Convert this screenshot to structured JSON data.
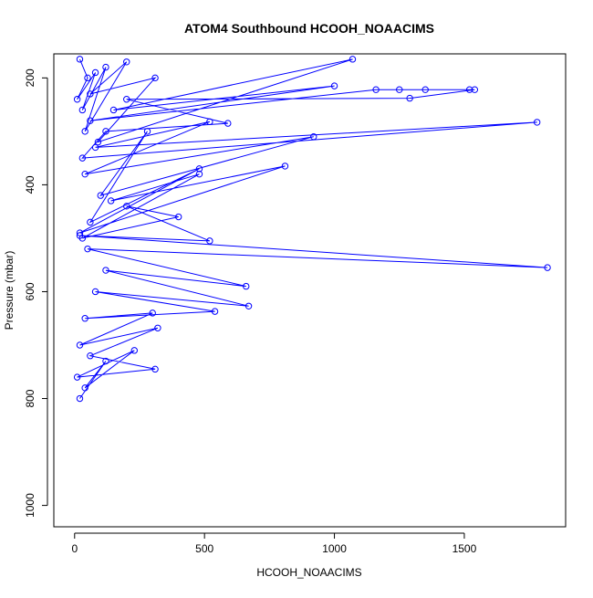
{
  "chart_data": {
    "type": "line",
    "title": "ATOM4 Southbound HCOOH_NOAACIMS",
    "xlabel": "HCOOH_NOAACIMS",
    "ylabel": "Pressure (mbar)",
    "xlim": [
      -80,
      1890
    ],
    "ylim": [
      1040,
      155
    ],
    "y_reversed": true,
    "x_ticks": [
      0,
      500,
      1000,
      1500
    ],
    "x_tick_labels": [
      "0",
      "500",
      "1000",
      "1500"
    ],
    "y_ticks": [
      200,
      400,
      600,
      800,
      1000
    ],
    "y_tick_labels": [
      "200",
      "400",
      "600",
      "800",
      "1000"
    ],
    "grid": false,
    "legend": "none",
    "series_color": "#0000ff",
    "marker": "open-circle",
    "series": [
      {
        "x": [
          20,
          50,
          10,
          80,
          30,
          120,
          40,
          200,
          60,
          310,
          90,
          1070,
          150,
          1000,
          60,
          1160,
          1250,
          1350,
          1520,
          1540,
          1290,
          200,
          590,
          120,
          30,
          1780,
          80,
          520,
          40,
          920,
          100,
          280,
          60,
          480,
          20,
          810,
          140,
          480,
          30,
          400,
          200,
          520,
          20,
          1820,
          50,
          660,
          120,
          670,
          80,
          540,
          40,
          300,
          20,
          320,
          60,
          310,
          10,
          230,
          40,
          120,
          20
        ],
        "y": [
          165,
          200,
          240,
          190,
          260,
          180,
          300,
          170,
          230,
          200,
          320,
          165,
          260,
          215,
          280,
          222,
          222,
          222,
          222,
          222,
          238,
          240,
          285,
          300,
          350,
          283,
          330,
          282,
          380,
          310,
          420,
          300,
          470,
          370,
          490,
          365,
          430,
          380,
          500,
          460,
          440,
          505,
          495,
          555,
          520,
          590,
          560,
          627,
          600,
          637,
          650,
          640,
          700,
          668,
          720,
          745,
          760,
          710,
          780,
          730,
          800
        ]
      }
    ]
  }
}
